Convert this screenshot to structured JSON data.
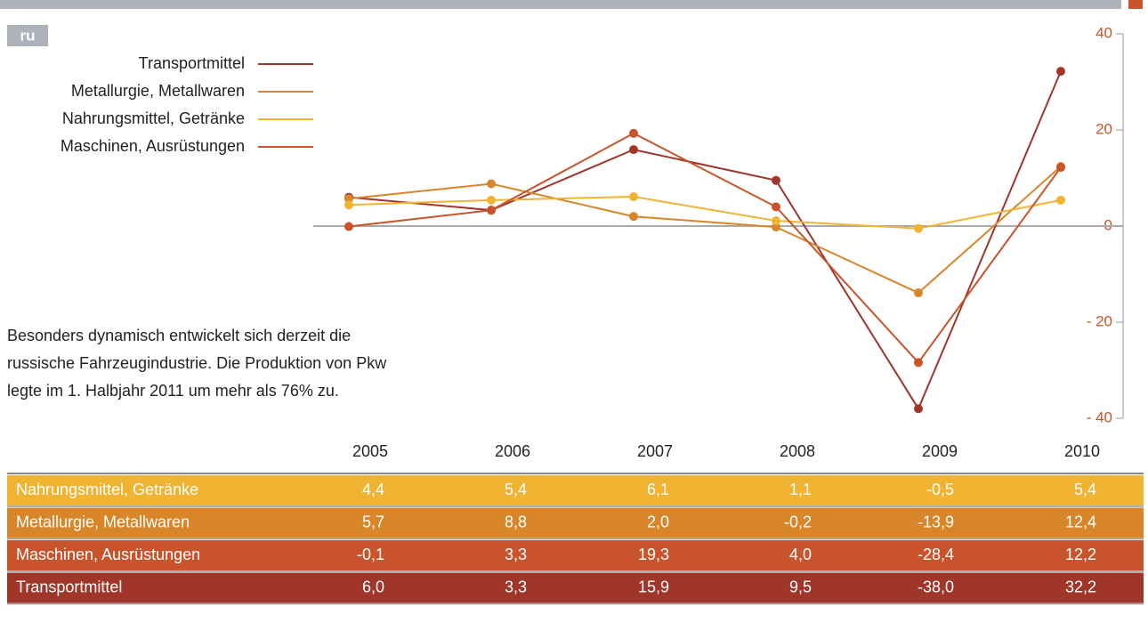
{
  "chart_data": {
    "type": "line",
    "badge": "ru",
    "annotation": [
      "Besonders dynamisch entwickelt sich derzeit die",
      "russische Fahrzeugindustrie. Die Produktion von Pkw",
      "legte im 1. Halbjahr 2011 um mehr als 76% zu."
    ],
    "categories": [
      "2005",
      "2006",
      "2007",
      "2008",
      "2009",
      "2010"
    ],
    "series": [
      {
        "name": "Transportmittel",
        "color": "#a0352a",
        "values": [
          6.0,
          3.3,
          15.9,
          9.5,
          -38.0,
          32.2
        ],
        "value_labels": [
          "6,0",
          "3,3",
          "15,9",
          "9,5",
          "-38,0",
          "32,2"
        ]
      },
      {
        "name": "Metallurgie, Metallwaren",
        "color": "#d9852a",
        "values": [
          5.7,
          8.8,
          2.0,
          -0.2,
          -13.9,
          12.4
        ],
        "value_labels": [
          "5,7",
          "8,8",
          "2,0",
          "-0,2",
          "-13,9",
          "12,4"
        ]
      },
      {
        "name": "Nahrungsmittel, Getränke",
        "color": "#f0b432",
        "values": [
          4.4,
          5.4,
          6.1,
          1.1,
          -0.5,
          5.4
        ],
        "value_labels": [
          "4,4",
          "5,4",
          "6,1",
          "1,1",
          "-0,5",
          "5,4"
        ]
      },
      {
        "name": "Maschinen, Ausrüstungen",
        "color": "#c9542b",
        "values": [
          -0.1,
          3.3,
          19.3,
          4.0,
          -28.4,
          12.2
        ],
        "value_labels": [
          "-0,1",
          "3,3",
          "19,3",
          "4,0",
          "-28,4",
          "12,2"
        ]
      }
    ],
    "ylim": [
      -40,
      40
    ],
    "yticks": [
      40,
      20,
      0,
      {
        "value": -20,
        "label": "- 20"
      },
      {
        "value": -40,
        "label": "- 40"
      }
    ],
    "tick_color": "#c9542b"
  }
}
